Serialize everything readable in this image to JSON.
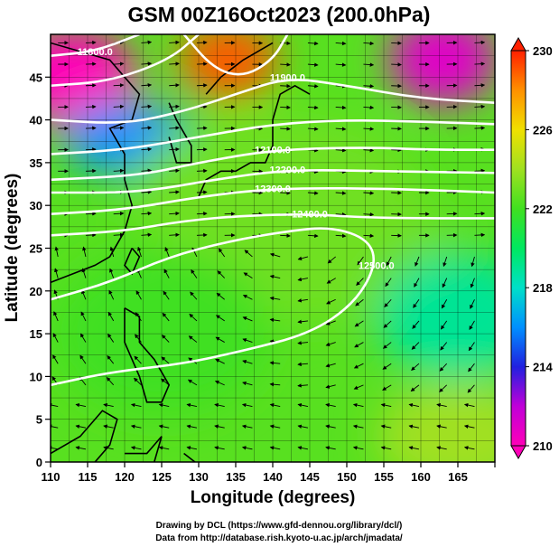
{
  "title": "GSM 00Z16Oct2023 (200.0hPa)",
  "credits": [
    "Drawing by DCL (https://www.gfd-dennou.org/library/dcl/)",
    "Data from http://database.rish.kyoto-u.ac.jp/arch/jmadata/"
  ],
  "chart_data": {
    "type": "heatmap",
    "title": "GSM 00Z16Oct2023 (200.0hPa)",
    "xlabel": "Longitude (degrees)",
    "ylabel": "Latitude  (degrees)",
    "xlim": [
      110,
      170
    ],
    "ylim": [
      0,
      50
    ],
    "x_ticks": [
      "110",
      "115",
      "120",
      "125",
      "130",
      "135",
      "140",
      "145",
      "150",
      "155",
      "160",
      "165"
    ],
    "y_ticks": [
      "0",
      "5",
      "10",
      "15",
      "20",
      "25",
      "30",
      "35",
      "40",
      "45"
    ],
    "grid": true,
    "colorbar": {
      "min": 210,
      "max": 230,
      "ticks": [
        "210",
        "214",
        "218",
        "222",
        "226",
        "230"
      ],
      "colors": [
        "#ff00b8",
        "#c000d8",
        "#2020e0",
        "#0090ff",
        "#00e0c8",
        "#00e860",
        "#40e020",
        "#a0e020",
        "#f0e000",
        "#ff9000",
        "#ff2000"
      ]
    },
    "field_regions": [
      {
        "lon": 113,
        "lat": 45,
        "value": 210,
        "label": "magenta"
      },
      {
        "lon": 163,
        "lat": 47,
        "value": 211,
        "label": "magenta"
      },
      {
        "lon": 134,
        "lat": 47,
        "value": 229,
        "label": "orange-red"
      },
      {
        "lon": 120,
        "lat": 38,
        "value": 216,
        "label": "blue-cyan"
      },
      {
        "lon": 140,
        "lat": 32,
        "value": 223,
        "label": "green"
      },
      {
        "lon": 145,
        "lat": 25,
        "value": 223,
        "label": "green"
      },
      {
        "lon": 165,
        "lat": 17,
        "value": 219,
        "label": "cyan"
      },
      {
        "lon": 125,
        "lat": 15,
        "value": 222,
        "label": "green"
      },
      {
        "lon": 165,
        "lat": 3,
        "value": 224,
        "label": "yellow-green"
      }
    ],
    "contour_labels": [
      "11800.0",
      "11900.0",
      "12100.0",
      "12200.0",
      "12300.0",
      "12400.0",
      "12500.0"
    ],
    "contours": [
      {
        "value": "11800.0",
        "points": [
          [
            110,
            47.5
          ],
          [
            116,
            48
          ],
          [
            122,
            50
          ]
        ]
      },
      {
        "value": "",
        "points": [
          [
            110,
            44
          ],
          [
            118,
            44.5
          ],
          [
            126,
            47
          ],
          [
            130,
            50
          ]
        ]
      },
      {
        "value": "",
        "points": [
          [
            128,
            50
          ],
          [
            132,
            46
          ],
          [
            136,
            45
          ],
          [
            140,
            47
          ],
          [
            142,
            50
          ]
        ]
      },
      {
        "value": "11900.0",
        "points": [
          [
            110,
            40
          ],
          [
            120,
            39.5
          ],
          [
            128,
            41
          ],
          [
            135,
            43
          ],
          [
            142,
            45
          ],
          [
            150,
            44
          ],
          [
            160,
            42.5
          ],
          [
            170,
            42
          ]
        ]
      },
      {
        "value": "",
        "points": [
          [
            110,
            36
          ],
          [
            120,
            36.5
          ],
          [
            130,
            38
          ],
          [
            140,
            39.5
          ],
          [
            150,
            40
          ],
          [
            160,
            39.8
          ],
          [
            170,
            39.5
          ]
        ]
      },
      {
        "value": "12100.0",
        "points": [
          [
            110,
            33
          ],
          [
            122,
            33.5
          ],
          [
            130,
            35
          ],
          [
            140,
            36.5
          ],
          [
            152,
            36.8
          ],
          [
            162,
            36.5
          ],
          [
            170,
            36.5
          ]
        ]
      },
      {
        "value": "12200.0",
        "points": [
          [
            110,
            31.5
          ],
          [
            122,
            31.5
          ],
          [
            132,
            33
          ],
          [
            142,
            34.2
          ],
          [
            155,
            34
          ],
          [
            170,
            33.8
          ]
        ]
      },
      {
        "value": "12300.0",
        "points": [
          [
            110,
            29
          ],
          [
            120,
            29.5
          ],
          [
            130,
            31
          ],
          [
            140,
            32
          ],
          [
            155,
            32
          ],
          [
            170,
            31.5
          ]
        ]
      },
      {
        "value": "12400.0",
        "points": [
          [
            110,
            26.5
          ],
          [
            120,
            27
          ],
          [
            128,
            28.2
          ],
          [
            136,
            28.8
          ],
          [
            145,
            29
          ],
          [
            152,
            28.6
          ],
          [
            160,
            28.5
          ],
          [
            170,
            28.5
          ]
        ]
      },
      {
        "value": "12500.0",
        "points": [
          [
            110,
            19
          ],
          [
            118,
            21
          ],
          [
            126,
            24
          ],
          [
            134,
            25.8
          ],
          [
            142,
            27
          ],
          [
            148,
            27.5
          ],
          [
            153,
            26
          ],
          [
            154,
            23
          ],
          [
            151,
            18.5
          ],
          [
            145,
            15
          ],
          [
            136,
            13
          ],
          [
            128,
            11.5
          ],
          [
            118,
            10.5
          ],
          [
            110,
            9
          ]
        ]
      }
    ]
  },
  "colors": {
    "contour": "#ffffff",
    "grid": "#000000",
    "streamline": "#000000",
    "coastline": "#000000"
  }
}
